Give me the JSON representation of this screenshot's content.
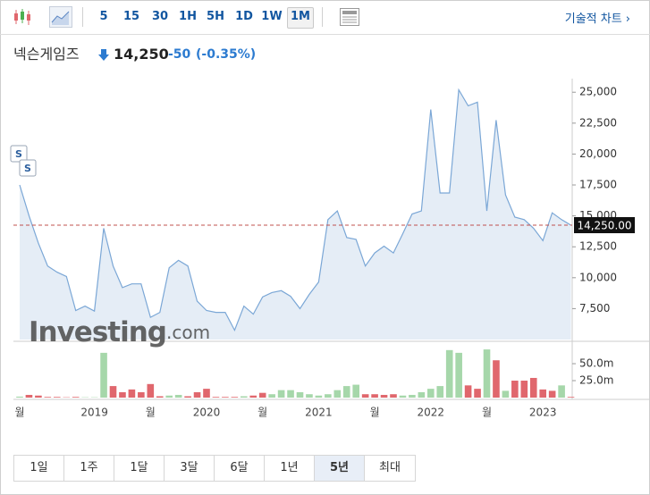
{
  "toolbar": {
    "intervals": [
      "5",
      "15",
      "30",
      "1H",
      "5H",
      "1D",
      "1W",
      "1M"
    ],
    "active_interval": 7,
    "technical_chart": "기술적 차트 ›"
  },
  "quote": {
    "name": "넥슨게임즈",
    "price": "14,250",
    "change": "-50",
    "change_pct": "(-0.35%)"
  },
  "chart_data": [
    {
      "type": "area",
      "color": "#7ba7d6",
      "fill": "#e5edf6",
      "categories": [
        "월",
        null,
        null,
        null,
        null,
        null,
        null,
        null,
        "2019",
        null,
        null,
        null,
        null,
        null,
        "월",
        null,
        null,
        null,
        null,
        null,
        "2020",
        null,
        null,
        null,
        null,
        null,
        "월",
        null,
        null,
        null,
        null,
        null,
        "2021",
        null,
        null,
        null,
        null,
        null,
        "월",
        null,
        null,
        null,
        null,
        null,
        "2022",
        null,
        null,
        null,
        null,
        null,
        "월",
        null,
        null,
        null,
        null,
        null,
        "2023",
        null,
        null,
        null
      ],
      "values": [
        17500,
        15000,
        12800,
        10950,
        10450,
        10100,
        7350,
        7700,
        7300,
        14000,
        10950,
        9200,
        9500,
        9500,
        6800,
        7200,
        10800,
        11400,
        10950,
        8100,
        7350,
        7200,
        7200,
        5750,
        7700,
        7050,
        8450,
        8800,
        8950,
        8500,
        7500,
        8650,
        9650,
        14700,
        15400,
        13250,
        13100,
        10950,
        12000,
        12550,
        12000,
        13550,
        15150,
        15400,
        23600,
        16850,
        16850,
        25200,
        23900,
        24200,
        15400,
        22750,
        16700,
        14900,
        14700,
        14000,
        13000,
        15250,
        14700,
        14250
      ],
      "ylim": [
        5000,
        26100
      ],
      "yticks": [
        {
          "value": 7500,
          "label": "7,500"
        },
        {
          "value": 10000,
          "label": "10,000"
        },
        {
          "value": 12500,
          "label": "12,500"
        },
        {
          "value": 15000,
          "label": "15,000"
        },
        {
          "value": 17500,
          "label": "17,500"
        },
        {
          "value": 20000,
          "label": "20,000"
        },
        {
          "value": 22500,
          "label": "22,500"
        },
        {
          "value": 25000,
          "label": "25,000"
        }
      ],
      "last_value": {
        "value": 14250,
        "label": "14,250.00"
      },
      "annotations": [
        "S",
        "S"
      ],
      "watermark": [
        "Investing",
        ".com"
      ]
    },
    {
      "type": "bar",
      "values": [
        1.5,
        4,
        3,
        1,
        1,
        0.5,
        1,
        0.5,
        0.5,
        66,
        17,
        8,
        12,
        8,
        20,
        2,
        3,
        4,
        2,
        8,
        13,
        1,
        1,
        1,
        2,
        3,
        7,
        5,
        11,
        11,
        8,
        5,
        3,
        5,
        11,
        17,
        19,
        5,
        5,
        4,
        5,
        3,
        4,
        8,
        13,
        17,
        70,
        66,
        18,
        13,
        71,
        55,
        10,
        25,
        25,
        29,
        12,
        10,
        18,
        1
      ],
      "colors": [
        "#a6d7aa",
        "#e0676d",
        "#e0676d",
        "#e0676d",
        "#e0676d",
        "#e0676d",
        "#e0676d",
        "#a6d7aa",
        "#a6d7aa",
        "#a6d7aa",
        "#e0676d",
        "#e0676d",
        "#e0676d",
        "#e0676d",
        "#e0676d",
        "#e0676d",
        "#a6d7aa",
        "#a6d7aa",
        "#e0676d",
        "#e0676d",
        "#e0676d",
        "#e0676d",
        "#e0676d",
        "#e0676d",
        "#a6d7aa",
        "#e0676d",
        "#e0676d",
        "#a6d7aa",
        "#a6d7aa",
        "#a6d7aa",
        "#a6d7aa",
        "#a6d7aa",
        "#a6d7aa",
        "#a6d7aa",
        "#a6d7aa",
        "#a6d7aa",
        "#a6d7aa",
        "#e0676d",
        "#e0676d",
        "#e0676d",
        "#e0676d",
        "#a6d7aa",
        "#a6d7aa",
        "#a6d7aa",
        "#a6d7aa",
        "#a6d7aa",
        "#a6d7aa",
        "#a6d7aa",
        "#e0676d",
        "#e0676d",
        "#a6d7aa",
        "#e0676d",
        "#a6d7aa",
        "#e0676d",
        "#e0676d",
        "#e0676d",
        "#e0676d",
        "#e0676d",
        "#a6d7aa",
        "#e0676d"
      ],
      "ylim": [
        0,
        79
      ],
      "yticks": [
        {
          "value": 25,
          "label": "25.0m"
        },
        {
          "value": 50,
          "label": "50.0m"
        }
      ]
    }
  ],
  "ranges": [
    "1일",
    "1주",
    "1달",
    "3달",
    "6달",
    "1년",
    "5년",
    "최대"
  ],
  "active_range": 6
}
